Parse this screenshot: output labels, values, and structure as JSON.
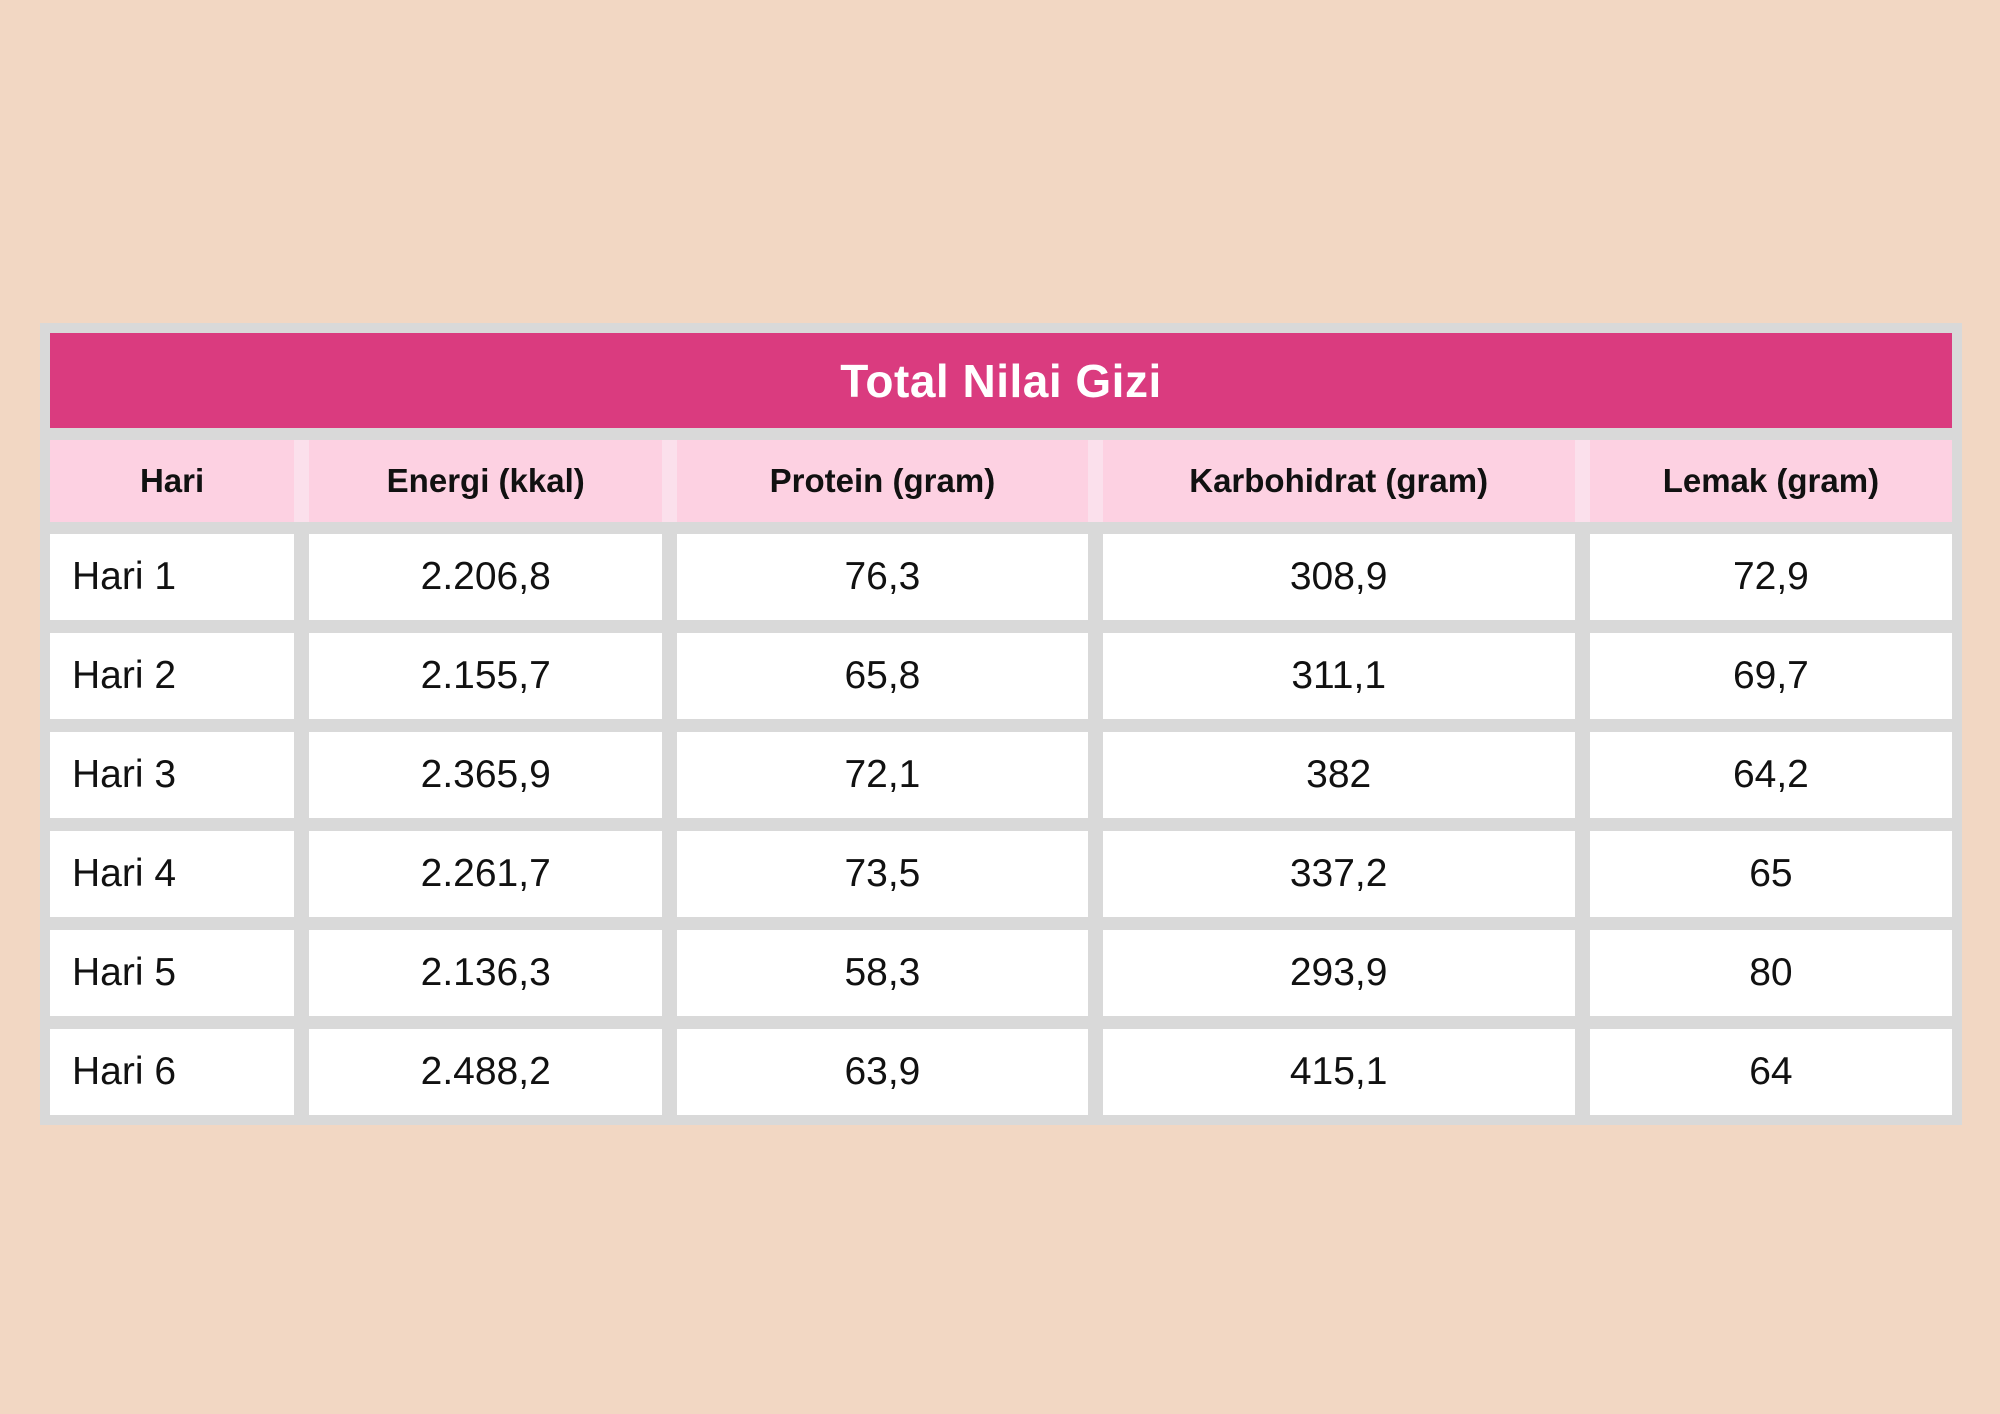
{
  "page": {
    "background_color": "#F2D7C3"
  },
  "colors": {
    "title_bar": "#DA3B7F",
    "title_text": "#FFFFFF",
    "header_pink": "#FDD1E2",
    "table_frame_gray": "#D9D9D9",
    "cell_white": "#FFFFFF",
    "body_text": "#111111"
  },
  "table": {
    "title": "Total Nilai Gizi",
    "columns": [
      "Hari",
      "Energi (kkal)",
      "Protein (gram)",
      "Karbohidrat (gram)",
      "Lemak (gram)"
    ],
    "rows": [
      [
        "Hari 1",
        "2.206,8",
        "76,3",
        "308,9",
        "72,9"
      ],
      [
        "Hari 2",
        "2.155,7",
        "65,8",
        "311,1",
        "69,7"
      ],
      [
        "Hari 3",
        "2.365,9",
        "72,1",
        "382",
        "64,2"
      ],
      [
        "Hari 4",
        "2.261,7",
        "73,5",
        "337,2",
        "65"
      ],
      [
        "Hari 5",
        "2.136,3",
        "58,3",
        "293,9",
        "80"
      ],
      [
        "Hari 6",
        "2.488,2",
        "63,9",
        "415,1",
        "64"
      ]
    ]
  },
  "chart_data": {
    "type": "table",
    "title": "Total Nilai Gizi",
    "columns": [
      "Hari",
      "Energi (kkal)",
      "Protein (gram)",
      "Karbohidrat (gram)",
      "Lemak (gram)"
    ],
    "categories": [
      "Hari 1",
      "Hari 2",
      "Hari 3",
      "Hari 4",
      "Hari 5",
      "Hari 6"
    ],
    "series": [
      {
        "name": "Energi (kkal)",
        "values": [
          2206.8,
          2155.7,
          2365.9,
          2261.7,
          2136.3,
          2488.2
        ]
      },
      {
        "name": "Protein (gram)",
        "values": [
          76.3,
          65.8,
          72.1,
          73.5,
          58.3,
          63.9
        ]
      },
      {
        "name": "Karbohidrat (gram)",
        "values": [
          308.9,
          311.1,
          382,
          337.2,
          293.9,
          415.1
        ]
      },
      {
        "name": "Lemak (gram)",
        "values": [
          72.9,
          69.7,
          64.2,
          65,
          80,
          64
        ]
      }
    ],
    "rows_display": [
      [
        "Hari 1",
        "2.206,8",
        "76,3",
        "308,9",
        "72,9"
      ],
      [
        "Hari 2",
        "2.155,7",
        "65,8",
        "311,1",
        "69,7"
      ],
      [
        "Hari 3",
        "2.365,9",
        "72,1",
        "382",
        "64,2"
      ],
      [
        "Hari 4",
        "2.261,7",
        "73,5",
        "337,2",
        "65"
      ],
      [
        "Hari 5",
        "2.136,3",
        "58,3",
        "293,9",
        "80"
      ],
      [
        "Hari 6",
        "2.488,2",
        "63,9",
        "415,1",
        "64"
      ]
    ]
  }
}
